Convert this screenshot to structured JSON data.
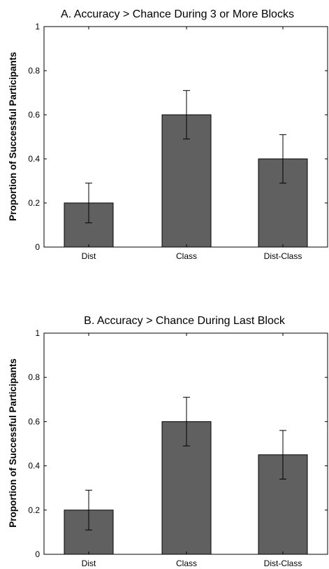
{
  "chart_data": [
    {
      "type": "bar",
      "title": "A. Accuracy > Chance During 3 or More Blocks",
      "xlabel": "",
      "ylabel": "Proportion of Successful Participants",
      "categories": [
        "Dist",
        "Class",
        "Dist-Class"
      ],
      "values": [
        0.2,
        0.6,
        0.4
      ],
      "error_upper": [
        0.29,
        0.71,
        0.51
      ],
      "error_lower": [
        0.11,
        0.49,
        0.29
      ],
      "ylim": [
        0,
        1
      ],
      "yticks": [
        "0",
        "0.2",
        "0.4",
        "0.6",
        "0.8",
        "1"
      ],
      "grid": false,
      "bar_color": "#606060"
    },
    {
      "type": "bar",
      "title": "B. Accuracy > Chance During Last Block",
      "xlabel": "",
      "ylabel": "Proportion of Successful Participants",
      "categories": [
        "Dist",
        "Class",
        "Dist-Class"
      ],
      "values": [
        0.2,
        0.6,
        0.45
      ],
      "error_upper": [
        0.29,
        0.71,
        0.56
      ],
      "error_lower": [
        0.11,
        0.49,
        0.34
      ],
      "ylim": [
        0,
        1
      ],
      "yticks": [
        "0",
        "0.2",
        "0.4",
        "0.6",
        "0.8",
        "1"
      ],
      "grid": false,
      "bar_color": "#606060"
    }
  ]
}
